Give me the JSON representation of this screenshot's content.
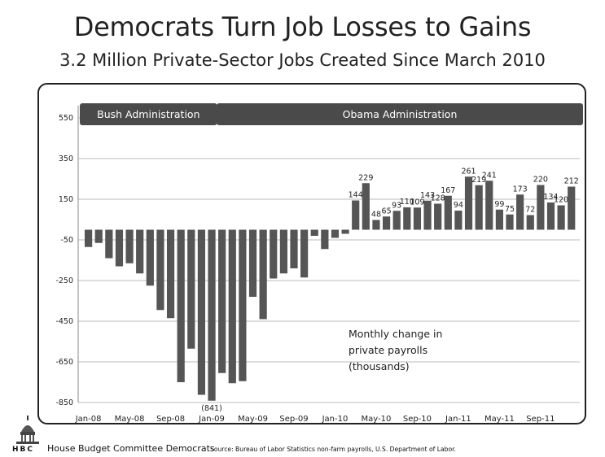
{
  "title": "Democrats Turn Job Losses to Gains",
  "subtitle": "3.2 Million Private-Sector Jobs Created Since March 2010",
  "footer": {
    "logo_text": "HBC",
    "org": "House Budget Committee Democrats",
    "source": "Source: Bureau of Labor Statistics non-farm payrolls, U.S. Department of Labor."
  },
  "chart_data": {
    "type": "bar",
    "annotation": [
      "Monthly change in",
      "private payrolls",
      "(thousands)"
    ],
    "bands": [
      {
        "label": "Bush Administration",
        "start_index": 0,
        "end_index": 12
      },
      {
        "label": "Obama Administration",
        "start_index": 13,
        "end_index": 47
      }
    ],
    "categories": [
      "Jan-08",
      "Feb-08",
      "Mar-08",
      "Apr-08",
      "May-08",
      "Jun-08",
      "Jul-08",
      "Aug-08",
      "Sep-08",
      "Oct-08",
      "Nov-08",
      "Dec-08",
      "Jan-09",
      "Feb-09",
      "Mar-09",
      "Apr-09",
      "May-09",
      "Jun-09",
      "Jul-09",
      "Aug-09",
      "Sep-09",
      "Oct-09",
      "Nov-09",
      "Dec-09",
      "Jan-10",
      "Feb-10",
      "Mar-10",
      "Apr-10",
      "May-10",
      "Jun-10",
      "Jul-10",
      "Aug-10",
      "Sep-10",
      "Oct-10",
      "Nov-10",
      "Dec-10",
      "Jan-11",
      "Feb-11",
      "Mar-11",
      "Apr-11",
      "May-11",
      "Jun-11",
      "Jul-11",
      "Aug-11",
      "Sep-11",
      "Oct-11",
      "Nov-11",
      "Dec-11"
    ],
    "values": [
      -85,
      -65,
      -140,
      -180,
      -165,
      -215,
      -275,
      -395,
      -435,
      -750,
      -585,
      -812,
      -841,
      -705,
      -755,
      -745,
      -330,
      -440,
      -240,
      -215,
      -190,
      -235,
      -30,
      -95,
      -40,
      -20,
      144,
      229,
      48,
      65,
      93,
      110,
      109,
      143,
      128,
      167,
      94,
      261,
      219,
      241,
      99,
      75,
      173,
      72,
      220,
      134,
      120,
      212
    ],
    "data_labels": [
      null,
      null,
      null,
      null,
      null,
      null,
      null,
      null,
      null,
      null,
      null,
      null,
      "(841)",
      null,
      null,
      null,
      null,
      null,
      null,
      null,
      null,
      null,
      null,
      null,
      null,
      null,
      "144",
      "229",
      "48",
      "65",
      "93",
      "110",
      "109",
      "143",
      "128",
      "167",
      "94",
      "261",
      "219",
      "241",
      "99",
      "75",
      "173",
      "72",
      "220",
      "134",
      "120",
      "212"
    ],
    "x_tick_labels": [
      "Jan-08",
      "May-08",
      "Sep-08",
      "Jan-09",
      "May-09",
      "Sep-09",
      "Jan-10",
      "May-10",
      "Sep-10",
      "Jan-11",
      "May-11",
      "Sep-11"
    ],
    "y_tick_labels": [
      "550",
      "350",
      "150",
      "-50",
      "-250",
      "-450",
      "-650",
      "-850"
    ],
    "y_ticks": [
      550,
      350,
      150,
      -50,
      -250,
      -450,
      -650,
      -850
    ],
    "ylim": [
      -850,
      550
    ],
    "grid": true,
    "colors": {
      "bar": "#555555",
      "band": "#4a4a4a",
      "grid": "#bbbbbb"
    }
  }
}
